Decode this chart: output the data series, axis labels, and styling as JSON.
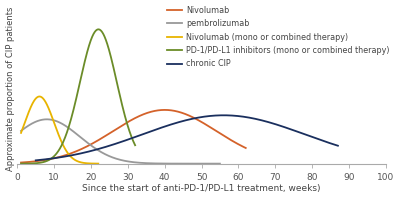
{
  "xlabel": "Since the start of anti-PD-1/PD-L1 treatment, weeks)",
  "ylabel": "Approximate proportion of CIP patients",
  "xlim": [
    0,
    100
  ],
  "ylim": [
    0,
    1.12
  ],
  "xticks": [
    0,
    10,
    20,
    30,
    40,
    50,
    60,
    70,
    80,
    90,
    100
  ],
  "background_color": "#ffffff",
  "curves": [
    {
      "label": "Nivolumab",
      "color": "#d4622a",
      "peak_x": 40,
      "peak_y": 0.4,
      "sigma": 14,
      "x_start": 1,
      "x_end": 62
    },
    {
      "label": "pembrolizumab",
      "color": "#999999",
      "peak_x": 8,
      "peak_y": 0.33,
      "sigma": 9,
      "x_start": 1,
      "x_end": 55
    },
    {
      "label": "Nivolumab (mono or combined therapy)",
      "color": "#e8b400",
      "peak_x": 6,
      "peak_y": 0.5,
      "sigma": 4,
      "x_start": 1,
      "x_end": 22
    },
    {
      "label": "PD-1/PD-L1 inhibitors (mono or combined therapy)",
      "color": "#6b8c28",
      "peak_x": 22,
      "peak_y": 1.0,
      "sigma": 5,
      "x_start": 1,
      "x_end": 32
    },
    {
      "label": "chronic CIP",
      "color": "#1a2f5e",
      "peak_x": 56,
      "peak_y": 0.36,
      "sigma": 22,
      "x_start": 5,
      "x_end": 87
    }
  ],
  "legend_fontsize": 5.8,
  "xlabel_fontsize": 6.5,
  "ylabel_fontsize": 6.0,
  "tick_fontsize": 6.5,
  "linewidth": 1.3
}
